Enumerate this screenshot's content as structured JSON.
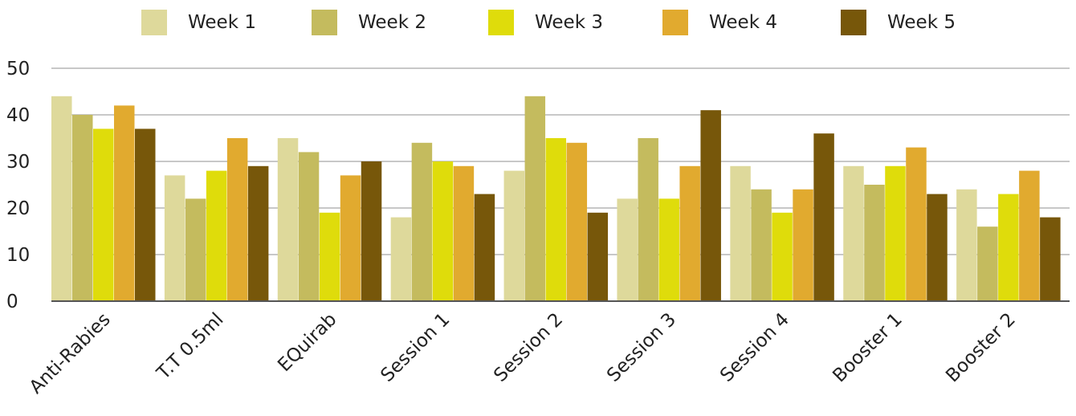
{
  "chart_data": {
    "type": "bar",
    "categories": [
      "Anti-Rabies",
      "T.T 0.5ml",
      "EQuirab",
      "Session 1",
      "Session 2",
      "Session 3",
      "Session 4",
      "Booster 1",
      "Booster 2"
    ],
    "series": [
      {
        "name": "Week 1",
        "color": "#DED99B",
        "values": [
          44,
          27,
          35,
          18,
          28,
          22,
          29,
          29,
          24
        ]
      },
      {
        "name": "Week 2",
        "color": "#C4BB5E",
        "values": [
          40,
          22,
          32,
          34,
          44,
          35,
          24,
          25,
          16
        ]
      },
      {
        "name": "Week 3",
        "color": "#DFDC0B",
        "values": [
          37,
          28,
          19,
          30,
          35,
          22,
          19,
          29,
          23
        ]
      },
      {
        "name": "Week 4",
        "color": "#E1AA2F",
        "values": [
          42,
          35,
          27,
          29,
          34,
          29,
          24,
          33,
          28
        ]
      },
      {
        "name": "Week 5",
        "color": "#77570A",
        "values": [
          37,
          29,
          30,
          23,
          19,
          41,
          36,
          23,
          18
        ]
      }
    ],
    "yticks": [
      0,
      10,
      20,
      30,
      40,
      50
    ],
    "ylim": [
      0,
      50
    ],
    "grid": true,
    "legend_position": "top-center",
    "title": "",
    "xlabel": "",
    "ylabel": ""
  }
}
